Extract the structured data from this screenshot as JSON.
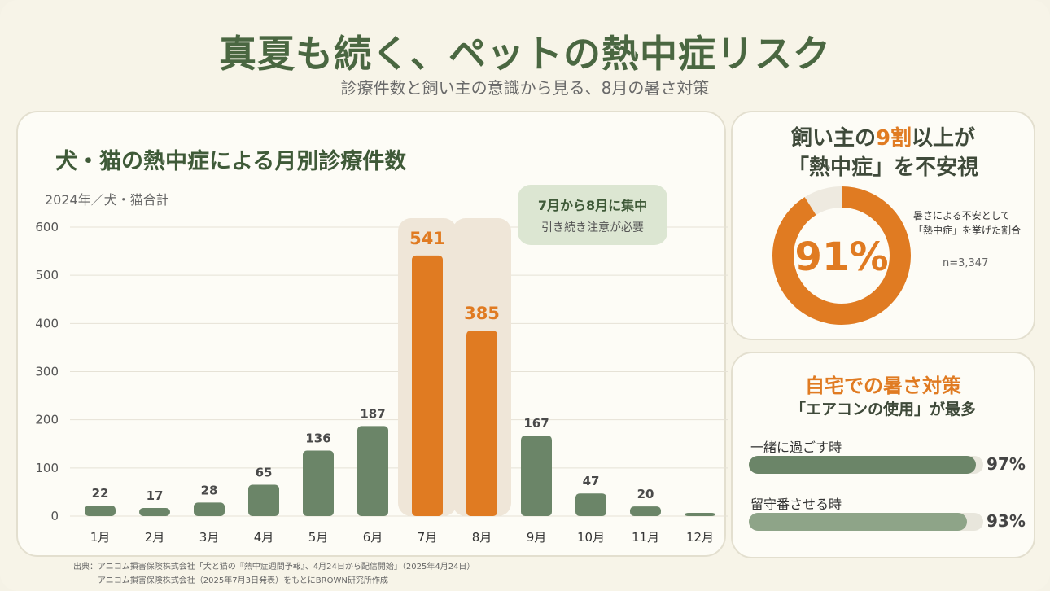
{
  "title": "真夏も続く、ペットの熱中症リスク",
  "subtitle": "診療件数と飼い主の意識から見る、8月の暑さ対策",
  "colors": {
    "green": "#6b8568",
    "orange": "#e07b22",
    "highlight": "#efe6d8",
    "light_green": "#8ea488"
  },
  "chart_data": {
    "type": "bar",
    "title": "犬・猫の熱中症による月別診療件数",
    "subtitle": "2024年／犬・猫合計",
    "categories": [
      "1月",
      "2月",
      "3月",
      "4月",
      "5月",
      "6月",
      "7月",
      "8月",
      "9月",
      "10月",
      "11月",
      "12月"
    ],
    "values": [
      22,
      17,
      28,
      65,
      136,
      187,
      541,
      385,
      167,
      47,
      20,
      null
    ],
    "value_labels": [
      "22",
      "17",
      "28",
      "65",
      "136",
      "187",
      "541",
      "385",
      "167",
      "47",
      "20",
      ""
    ],
    "highlighted": [
      "7月",
      "8月"
    ],
    "ylim": [
      0,
      600
    ],
    "yticks": [
      0,
      100,
      200,
      300,
      400,
      500,
      600
    ],
    "grid": true,
    "legend": "none"
  },
  "callout": {
    "main": "7月から8月に集中",
    "sub": "引き続き注意が必要"
  },
  "source": {
    "line1": "出典：アニコム損害保険株式会社「犬と猫の『熱中症週間予報』、4月24日から配信開始」（2025年4月24日）",
    "line2": "アニコム損害保険株式会社（2025年7月3日発表）をもとにBROWN研究所作成"
  },
  "donut": {
    "head_pre": "飼い主の",
    "head_accent": "9割",
    "head_post": "以上が",
    "head_line2": "「熱中症」を不安視",
    "value": 91,
    "value_label": "91%",
    "note1": "暑さによる不安として",
    "note2": "「熱中症」を挙げた割合",
    "n": "n=3,347"
  },
  "measures": {
    "head1": "自宅での暑さ対策",
    "head2": "「エアコンの使用」が最多",
    "items": [
      {
        "label": "一緒に過ごす時",
        "value": 97,
        "value_label": "97%"
      },
      {
        "label": "留守番させる時",
        "value": 93,
        "value_label": "93%"
      }
    ]
  }
}
